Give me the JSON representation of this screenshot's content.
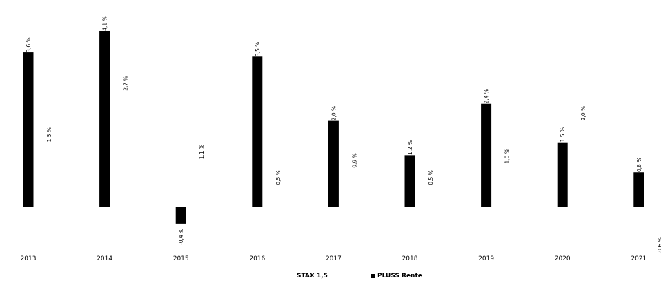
{
  "chart_data": {
    "type": "bar",
    "categories": [
      "2013",
      "2014",
      "2015",
      "2016",
      "2017",
      "2018",
      "2019",
      "2020",
      "2021"
    ],
    "series": [
      {
        "name": "PLUSS Rente",
        "values": [
          3.6,
          4.1,
          -0.4,
          3.5,
          2.0,
          1.2,
          2.4,
          1.5,
          0.8
        ],
        "labels": [
          "3,6 %",
          "4,1 %",
          "-0,4 %",
          "3,5 %",
          "2,0 %",
          "1,2 %",
          "2,4 %",
          "1,5 %",
          "0,8 %"
        ],
        "color": "#000000",
        "visible": true
      },
      {
        "name": "STAX 1,5",
        "values": [
          1.5,
          2.7,
          1.1,
          0.5,
          0.9,
          0.5,
          1.0,
          2.0,
          -0.6
        ],
        "labels": [
          "1,5 %",
          "2,7 %",
          "1,1 %",
          "0,5 %",
          "0,9 %",
          "0,5 %",
          "1,0 %",
          "2,0 %",
          "-0,6 %"
        ],
        "color": "#ffffff",
        "visible": false
      }
    ],
    "title": "",
    "xlabel": "",
    "ylabel": "",
    "ylim": [
      -1.0,
      4.5
    ],
    "grid": false,
    "legend": "bottom-center"
  },
  "legend": {
    "items": [
      {
        "label": "STAX 1,5",
        "swatch": false
      },
      {
        "label": "PLUSS Rente",
        "swatch": true
      }
    ]
  }
}
